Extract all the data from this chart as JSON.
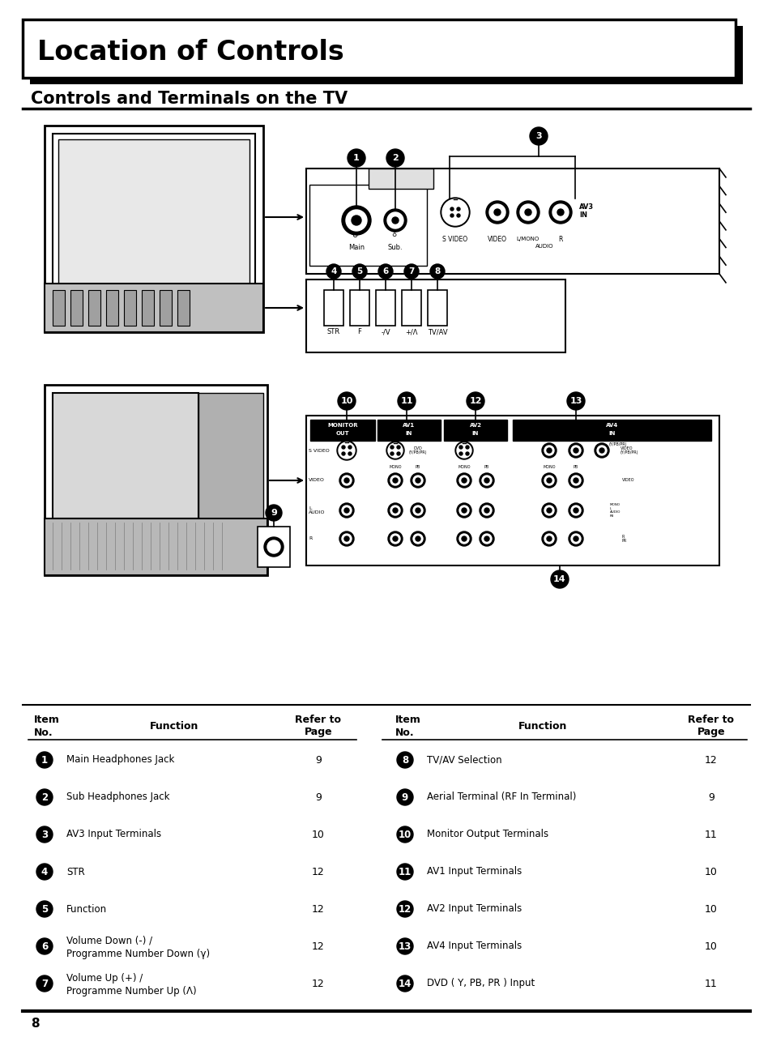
{
  "title": "Location of Controls",
  "subtitle": "Controls and Terminals on the TV",
  "bg_color": "#ffffff",
  "title_fontsize": 24,
  "subtitle_fontsize": 15,
  "table_items_left": [
    {
      "num": "1",
      "func": "Main Headphones Jack",
      "func2": "",
      "page": "9"
    },
    {
      "num": "2",
      "func": "Sub Headphones Jack",
      "func2": "",
      "page": "9"
    },
    {
      "num": "3",
      "func": "AV3 Input Terminals",
      "func2": "",
      "page": "10"
    },
    {
      "num": "4",
      "func": "STR",
      "func2": "",
      "page": "12"
    },
    {
      "num": "5",
      "func": "Function",
      "func2": "",
      "page": "12"
    },
    {
      "num": "6",
      "func": "Volume Down (-) /",
      "func2": "Programme Number Down (γ)",
      "page": "12"
    },
    {
      "num": "7",
      "func": "Volume Up (+) /",
      "func2": "Programme Number Up (Λ)",
      "page": "12"
    }
  ],
  "table_items_right": [
    {
      "num": "8",
      "func": "TV/AV Selection",
      "func2": "",
      "page": "12"
    },
    {
      "num": "9",
      "func": "Aerial Terminal (RF In Terminal)",
      "func2": "",
      "page": "9"
    },
    {
      "num": "10",
      "func": "Monitor Output Terminals",
      "func2": "",
      "page": "11"
    },
    {
      "num": "11",
      "func": "AV1 Input Terminals",
      "func2": "",
      "page": "10"
    },
    {
      "num": "12",
      "func": "AV2 Input Terminals",
      "func2": "",
      "page": "10"
    },
    {
      "num": "13",
      "func": "AV4 Input Terminals",
      "func2": "",
      "page": "10"
    },
    {
      "num": "14",
      "func": "DVD ( Y, PB, PR ) Input",
      "func2": "",
      "page": "11"
    }
  ],
  "page_number": "8"
}
